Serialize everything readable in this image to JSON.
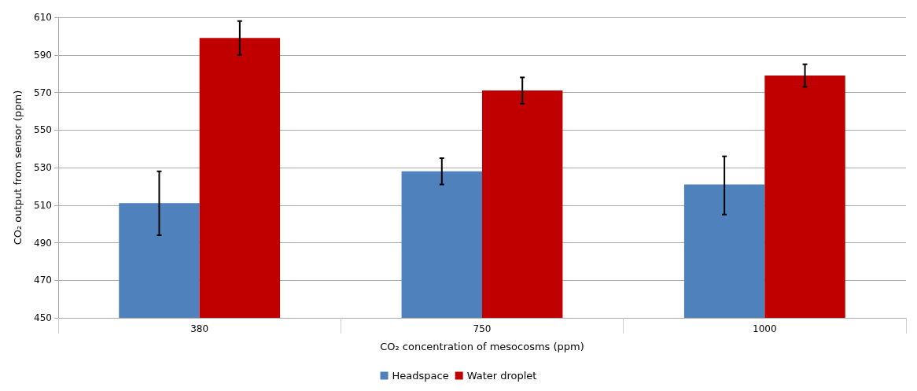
{
  "chart_data": {
    "type": "bar",
    "xlabel": "CO₂ concentration of mesocosms (ppm)",
    "ylabel": "CO₂ output from sensor (ppm)",
    "categories": [
      "380",
      "750",
      "1000"
    ],
    "series": [
      {
        "name": "Headspace",
        "color": "#4f81bd",
        "values": [
          511,
          528,
          521
        ],
        "errors": [
          [
            494,
            528
          ],
          [
            521,
            535
          ],
          [
            505,
            536
          ]
        ]
      },
      {
        "name": "Water droplet",
        "color": "#c00000",
        "values": [
          599,
          571,
          579
        ],
        "errors": [
          [
            590,
            608
          ],
          [
            564,
            578
          ],
          [
            573,
            585
          ]
        ]
      }
    ],
    "ylim": [
      450,
      610
    ],
    "yticks": [
      450,
      470,
      490,
      510,
      530,
      550,
      570,
      590,
      610
    ],
    "grid": "y",
    "legend": "bottom"
  }
}
